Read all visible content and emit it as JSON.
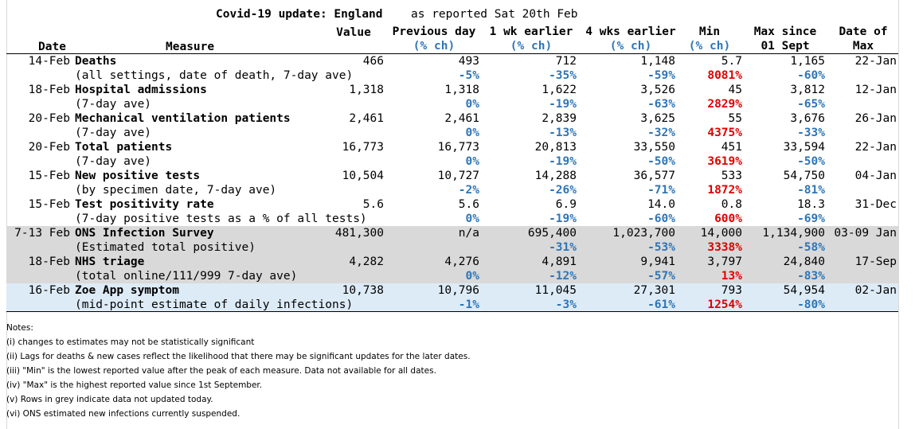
{
  "title": {
    "main": "Covid-19 update: England",
    "reported": "as reported Sat 20th Feb"
  },
  "headers": {
    "date": "Date",
    "measure": "Measure",
    "value": "Value",
    "prev_day": "Previous day",
    "prev_day_sub": "(% ch)",
    "wk1": "1 wk earlier",
    "wk1_sub": "(% ch)",
    "wk4": "4 wks earlier",
    "wk4_sub": "(% ch)",
    "min": "Min",
    "min_sub": "(% ch)",
    "max": "Max since",
    "max_sub": "01 Sept",
    "datemax": "Date of",
    "datemax_sub": "Max"
  },
  "rows": [
    {
      "date": "14-Feb",
      "measure": "Deaths",
      "sub": "(all settings, date of death, 7-day ave)",
      "value": "466",
      "prev": "493",
      "prev_ch": "-5%",
      "wk1": "712",
      "wk1_ch": "-35%",
      "wk4": "1,148",
      "wk4_ch": "-59%",
      "min": "5.7",
      "min_ch": "8081%",
      "max": "1,165",
      "max_ch": "-60%",
      "datemax": "22-Jan",
      "band": "none"
    },
    {
      "date": "18-Feb",
      "measure": "Hospital admissions",
      "sub": "(7-day ave)",
      "value": "1,318",
      "prev": "1,318",
      "prev_ch": "0%",
      "wk1": "1,622",
      "wk1_ch": "-19%",
      "wk4": "3,526",
      "wk4_ch": "-63%",
      "min": "45",
      "min_ch": "2829%",
      "max": "3,812",
      "max_ch": "-65%",
      "datemax": "12-Jan",
      "band": "none"
    },
    {
      "date": "20-Feb",
      "measure": "Mechanical ventilation patients",
      "sub": "(7-day ave)",
      "value": "2,461",
      "prev": "2,461",
      "prev_ch": "0%",
      "wk1": "2,839",
      "wk1_ch": "-13%",
      "wk4": "3,625",
      "wk4_ch": "-32%",
      "min": "55",
      "min_ch": "4375%",
      "max": "3,676",
      "max_ch": "-33%",
      "datemax": "26-Jan",
      "band": "none"
    },
    {
      "date": "20-Feb",
      "measure": "Total patients",
      "sub": "(7-day ave)",
      "value": "16,773",
      "prev": "16,773",
      "prev_ch": "0%",
      "wk1": "20,813",
      "wk1_ch": "-19%",
      "wk4": "33,550",
      "wk4_ch": "-50%",
      "min": "451",
      "min_ch": "3619%",
      "max": "33,594",
      "max_ch": "-50%",
      "datemax": "22-Jan",
      "band": "none"
    },
    {
      "date": "15-Feb",
      "measure": "New positive tests",
      "sub": "(by specimen date, 7-day ave)",
      "value": "10,504",
      "prev": "10,727",
      "prev_ch": "-2%",
      "wk1": "14,288",
      "wk1_ch": "-26%",
      "wk4": "36,577",
      "wk4_ch": "-71%",
      "min": "533",
      "min_ch": "1872%",
      "max": "54,750",
      "max_ch": "-81%",
      "datemax": "04-Jan",
      "band": "none"
    },
    {
      "date": "15-Feb",
      "measure": "Test positivity rate",
      "sub": "(7-day positive tests as a % of all tests)",
      "value": "5.6",
      "prev": "5.6",
      "prev_ch": "0%",
      "wk1": "6.9",
      "wk1_ch": "-19%",
      "wk4": "14.0",
      "wk4_ch": "-60%",
      "min": "0.8",
      "min_ch": "600%",
      "max": "18.3",
      "max_ch": "-69%",
      "datemax": "31-Dec",
      "band": "none"
    },
    {
      "date": "7-13 Feb",
      "measure": "ONS Infection Survey",
      "sub": "(Estimated total positive)",
      "value": "481,300",
      "prev": "n/a",
      "prev_ch": "",
      "wk1": "695,400",
      "wk1_ch": "-31%",
      "wk4": "1,023,700",
      "wk4_ch": "-53%",
      "min": "14,000",
      "min_ch": "3338%",
      "max": "1,134,900",
      "max_ch": "-58%",
      "datemax": "03-09 Jan",
      "band": "grey"
    },
    {
      "date": "18-Feb",
      "measure": "NHS triage",
      "sub": "(total online/111/999 7-day ave)",
      "value": "4,282",
      "prev": "4,276",
      "prev_ch": "0%",
      "wk1": "4,891",
      "wk1_ch": "-12%",
      "wk4": "9,941",
      "wk4_ch": "-57%",
      "min": "3,797",
      "min_ch": "13%",
      "max": "24,840",
      "max_ch": "-83%",
      "datemax": "17-Sep",
      "band": "grey"
    },
    {
      "date": "16-Feb",
      "measure": "Zoe App symptom",
      "sub": "(mid-point estimate of daily infections)",
      "value": "10,738",
      "prev": "10,796",
      "prev_ch": "-1%",
      "wk1": "11,045",
      "wk1_ch": "-3%",
      "wk4": "27,301",
      "wk4_ch": "-61%",
      "min": "793",
      "min_ch": "1254%",
      "max": "54,954",
      "max_ch": "-80%",
      "datemax": "02-Jan",
      "band": "lightblue"
    }
  ],
  "notes": {
    "heading": "Notes:",
    "items": [
      "(i) changes to estimates may not be statistically significant",
      "(ii) Lags for deaths & new cases reflect the likelihood that there may be significant updates for the later dates.",
      "(iii) \"Min\" is the lowest reported value after the peak of each measure. Data not available for all dates.",
      "(iv) \"Max\" is the highest reported value since 1st September.",
      "(v) Rows in grey indicate data not updated today.",
      "(vi) ONS estimated new infections currently suspended."
    ]
  }
}
